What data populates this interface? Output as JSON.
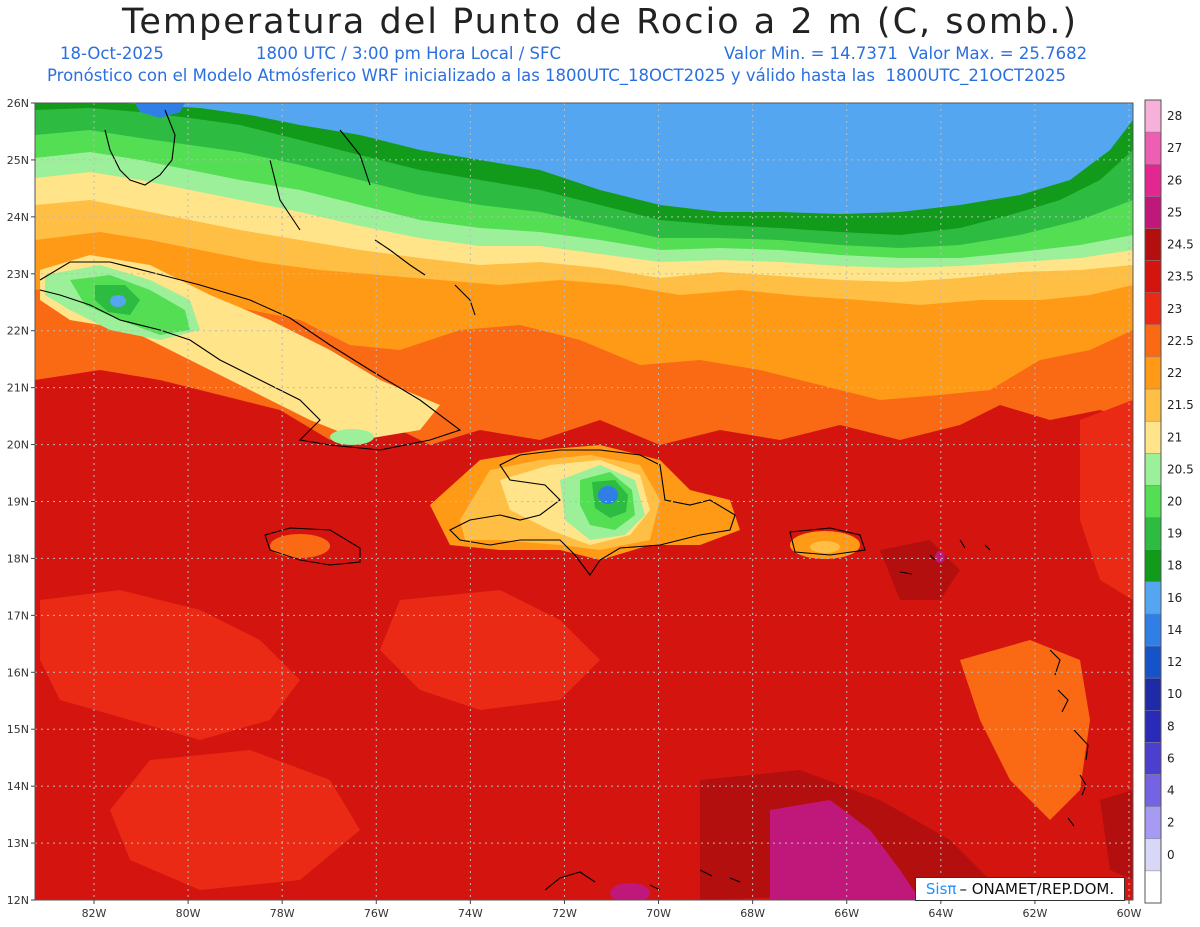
{
  "header": {
    "title": "Temperatura del Punto de Rocio a 2 m (C, somb.)",
    "date": "18-Oct-2025",
    "time": "1800 UTC / 3:00 pm Hora Local / SFC",
    "minmax": "Valor Min. = 14.7371  Valor Max. = 25.7682",
    "model_info": "Pronóstico con el Modelo Atmósferico WRF inicializado a las 1800UTC_18OCT2025 y válido hasta las  1800UTC_21OCT2025"
  },
  "credit": {
    "brand": "Sisπ",
    "text": "– ONAMET/REP.DOM."
  },
  "lat_labels": [
    "26N",
    "25N",
    "24N",
    "23N",
    "22N",
    "21N",
    "20N",
    "19N",
    "18N",
    "17N",
    "16N",
    "15N",
    "14N",
    "13N",
    "12N"
  ],
  "lon_labels": [
    "82W",
    "80W",
    "78W",
    "76W",
    "74W",
    "72W",
    "70W",
    "68W",
    "66W",
    "64W",
    "62W",
    "60W"
  ],
  "legend": [
    {
      "label": "28",
      "color": "#f6b0d9"
    },
    {
      "label": "27",
      "color": "#ee5fb3"
    },
    {
      "label": "26",
      "color": "#e32690"
    },
    {
      "label": "25",
      "color": "#c0187a"
    },
    {
      "label": "24.5",
      "color": "#b30f0f"
    },
    {
      "label": "23.5",
      "color": "#d4140f"
    },
    {
      "label": "23",
      "color": "#ea2a14"
    },
    {
      "label": "22.5",
      "color": "#fa6a14"
    },
    {
      "label": "22",
      "color": "#ff9a16"
    },
    {
      "label": "21.5",
      "color": "#ffbf44"
    },
    {
      "label": "21",
      "color": "#ffe48a"
    },
    {
      "label": "20.5",
      "color": "#9cf09a"
    },
    {
      "label": "20",
      "color": "#54de54"
    },
    {
      "label": "19",
      "color": "#2dbb42"
    },
    {
      "label": "18",
      "color": "#129a1a"
    },
    {
      "label": "16",
      "color": "#55a6f0"
    },
    {
      "label": "14",
      "color": "#2f7fe6"
    },
    {
      "label": "12",
      "color": "#1653c8"
    },
    {
      "label": "10",
      "color": "#1f2aa6"
    },
    {
      "label": "8",
      "color": "#2a2ab8"
    },
    {
      "label": "6",
      "color": "#4a3fcf"
    },
    {
      "label": "4",
      "color": "#7463e2"
    },
    {
      "label": "2",
      "color": "#a79af2"
    },
    {
      "label": "0",
      "color": "#d8d8f6"
    },
    {
      "label": "",
      "color": "#ffffff"
    }
  ]
}
